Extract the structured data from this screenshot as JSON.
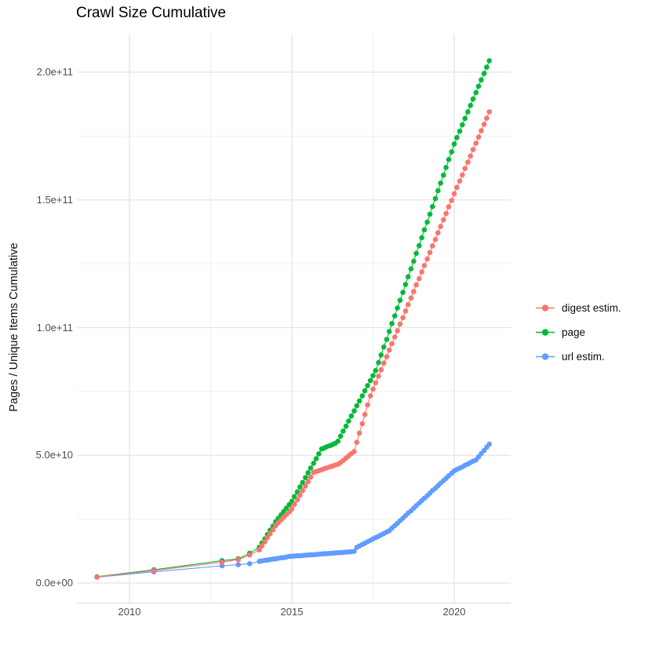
{
  "title": "Crawl Size Cumulative",
  "axes": {
    "y_label": "Pages / Unique Items Cumulative",
    "x_ticks": [
      {
        "label": "2010",
        "year": 2010
      },
      {
        "label": "2015",
        "year": 2015
      },
      {
        "label": "2020",
        "year": 2020
      }
    ],
    "y_ticks": [
      {
        "label": "0.0e+00",
        "value_billions": 0
      },
      {
        "label": "5.0e+10",
        "value_billions": 50
      },
      {
        "label": "1.0e+11",
        "value_billions": 100
      },
      {
        "label": "1.5e+11",
        "value_billions": 150
      },
      {
        "label": "2.0e+11",
        "value_billions": 200
      }
    ],
    "x_minor_gridlines_years": [
      2012.5,
      2017.5
    ],
    "y_minor_gridlines_billions": [
      25,
      75,
      125,
      175
    ],
    "grid_major_color": "#e4e4e4",
    "grid_minor_color": "#f0f0f0",
    "axis_baseline_color": "#dcdcdc",
    "tick_label_color": "#4d4d4d"
  },
  "legend": {
    "entries": [
      {
        "label": "digest estim.",
        "color": "#F8766D"
      },
      {
        "label": "page",
        "color": "#00BA38"
      },
      {
        "label": "url estim.",
        "color": "#619CFF"
      }
    ]
  },
  "chart_data": {
    "type": "line",
    "title": "Crawl Size Cumulative",
    "xlabel": "",
    "ylabel": "Pages / Unique Items Cumulative",
    "values_unit": "billions (1e9) of pages / unique items",
    "x_axis_years_range": [
      2008.4,
      2021.8
    ],
    "y_axis_range_billions": [
      -10,
      215
    ],
    "legend_position": "right",
    "grid": true,
    "series": [
      {
        "name": "digest estim.",
        "color": "#F8766D",
        "points_year_value_billions": [
          [
            2009.0,
            2.4
          ],
          [
            2010.75,
            4.9
          ],
          [
            2012.85,
            8.2
          ],
          [
            2013.35,
            9.2
          ],
          [
            2013.7,
            11.0
          ],
          [
            2014.0,
            13
          ],
          [
            2014.08,
            14.6
          ],
          [
            2014.17,
            16.2
          ],
          [
            2014.25,
            17.8
          ],
          [
            2014.33,
            19.3
          ],
          [
            2014.42,
            20.9
          ],
          [
            2014.5,
            22.5
          ],
          [
            2014.58,
            23.6
          ],
          [
            2014.67,
            24.7
          ],
          [
            2014.75,
            25.8
          ],
          [
            2014.83,
            26.8
          ],
          [
            2014.92,
            27.9
          ],
          [
            2015.0,
            29
          ],
          [
            2015.08,
            30.8
          ],
          [
            2015.17,
            32.6
          ],
          [
            2015.25,
            34.4
          ],
          [
            2015.33,
            36.2
          ],
          [
            2015.42,
            38
          ],
          [
            2015.5,
            39.7
          ],
          [
            2015.58,
            41.5
          ],
          [
            2015.67,
            43.3
          ],
          [
            2015.75,
            43.7
          ],
          [
            2015.83,
            44
          ],
          [
            2015.92,
            44.4
          ],
          [
            2016.0,
            44.8
          ],
          [
            2016.08,
            45.1
          ],
          [
            2016.17,
            45.5
          ],
          [
            2016.25,
            45.8
          ],
          [
            2016.33,
            46.2
          ],
          [
            2016.42,
            46.5
          ],
          [
            2016.5,
            47.2
          ],
          [
            2016.58,
            48
          ],
          [
            2016.67,
            48.9
          ],
          [
            2016.75,
            49.8
          ],
          [
            2016.83,
            50.7
          ],
          [
            2016.92,
            51.5
          ],
          [
            2017.0,
            55.1
          ],
          [
            2017.08,
            58.7
          ],
          [
            2017.17,
            62.4
          ],
          [
            2017.25,
            66
          ],
          [
            2017.33,
            69.7
          ],
          [
            2017.42,
            73.3
          ],
          [
            2017.5,
            75.9
          ],
          [
            2017.58,
            78.4
          ],
          [
            2017.67,
            81
          ],
          [
            2017.75,
            83.5
          ],
          [
            2017.83,
            86.1
          ],
          [
            2017.92,
            88.6
          ],
          [
            2018.0,
            91.2
          ],
          [
            2018.08,
            93.7
          ],
          [
            2018.17,
            96.3
          ],
          [
            2018.25,
            98.8
          ],
          [
            2018.33,
            101.4
          ],
          [
            2018.42,
            103.9
          ],
          [
            2018.5,
            106.5
          ],
          [
            2018.58,
            109
          ],
          [
            2018.67,
            111.6
          ],
          [
            2018.75,
            114.1
          ],
          [
            2018.83,
            116.7
          ],
          [
            2018.92,
            119.2
          ],
          [
            2019.0,
            121.8
          ],
          [
            2019.08,
            124.3
          ],
          [
            2019.17,
            126.9
          ],
          [
            2019.25,
            129.4
          ],
          [
            2019.33,
            132
          ],
          [
            2019.42,
            134.5
          ],
          [
            2019.5,
            137.1
          ],
          [
            2019.58,
            139.6
          ],
          [
            2019.67,
            142.2
          ],
          [
            2019.75,
            144.7
          ],
          [
            2019.83,
            147.3
          ],
          [
            2019.92,
            149.8
          ],
          [
            2020.0,
            152.4
          ],
          [
            2020.08,
            154.9
          ],
          [
            2020.17,
            157.4
          ],
          [
            2020.25,
            159.8
          ],
          [
            2020.33,
            162.3
          ],
          [
            2020.42,
            164.8
          ],
          [
            2020.5,
            167.2
          ],
          [
            2020.58,
            169.7
          ],
          [
            2020.67,
            172.2
          ],
          [
            2020.75,
            174.6
          ],
          [
            2020.83,
            177.1
          ],
          [
            2020.92,
            179.6
          ],
          [
            2021.0,
            182
          ],
          [
            2021.08,
            184.5
          ]
        ]
      },
      {
        "name": "page",
        "color": "#00BA38",
        "points_year_value_billions": [
          [
            2009.0,
            2.5
          ],
          [
            2010.75,
            5.2
          ],
          [
            2012.85,
            8.8
          ],
          [
            2013.35,
            9.5
          ],
          [
            2013.7,
            11.7
          ],
          [
            2014.0,
            14
          ],
          [
            2014.08,
            15.7
          ],
          [
            2014.17,
            17.3
          ],
          [
            2014.25,
            19
          ],
          [
            2014.33,
            20.7
          ],
          [
            2014.42,
            22.3
          ],
          [
            2014.5,
            24
          ],
          [
            2014.58,
            25.3
          ],
          [
            2014.67,
            26.7
          ],
          [
            2014.75,
            28
          ],
          [
            2014.83,
            29.3
          ],
          [
            2014.92,
            30.7
          ],
          [
            2015.0,
            32
          ],
          [
            2015.08,
            33.9
          ],
          [
            2015.17,
            35.7
          ],
          [
            2015.25,
            37.6
          ],
          [
            2015.33,
            39.4
          ],
          [
            2015.42,
            41.3
          ],
          [
            2015.5,
            43.2
          ],
          [
            2015.58,
            45
          ],
          [
            2015.67,
            46.9
          ],
          [
            2015.75,
            48.7
          ],
          [
            2015.83,
            50.6
          ],
          [
            2015.92,
            52.5
          ],
          [
            2016.0,
            52.9
          ],
          [
            2016.08,
            53.4
          ],
          [
            2016.17,
            53.8
          ],
          [
            2016.25,
            54.2
          ],
          [
            2016.33,
            54.7
          ],
          [
            2016.42,
            55.5
          ],
          [
            2016.5,
            57.5
          ],
          [
            2016.58,
            59.5
          ],
          [
            2016.67,
            61.4
          ],
          [
            2016.75,
            63.4
          ],
          [
            2016.83,
            65.4
          ],
          [
            2016.92,
            67.4
          ],
          [
            2017.0,
            69.4
          ],
          [
            2017.08,
            71.3
          ],
          [
            2017.17,
            73.3
          ],
          [
            2017.25,
            75.3
          ],
          [
            2017.33,
            77.3
          ],
          [
            2017.42,
            79.3
          ],
          [
            2017.5,
            81.2
          ],
          [
            2017.58,
            83.2
          ],
          [
            2017.67,
            86.3
          ],
          [
            2017.75,
            89.3
          ],
          [
            2017.83,
            92.4
          ],
          [
            2017.92,
            95.4
          ],
          [
            2018.0,
            98.5
          ],
          [
            2018.08,
            101.6
          ],
          [
            2018.17,
            104.6
          ],
          [
            2018.25,
            107.7
          ],
          [
            2018.33,
            110.7
          ],
          [
            2018.42,
            113.8
          ],
          [
            2018.5,
            116.9
          ],
          [
            2018.58,
            119.9
          ],
          [
            2018.67,
            123
          ],
          [
            2018.75,
            126
          ],
          [
            2018.83,
            129.1
          ],
          [
            2018.92,
            132.1
          ],
          [
            2019.0,
            135.2
          ],
          [
            2019.08,
            138.3
          ],
          [
            2019.17,
            141.3
          ],
          [
            2019.25,
            144.4
          ],
          [
            2019.33,
            147.4
          ],
          [
            2019.42,
            150.5
          ],
          [
            2019.5,
            153.6
          ],
          [
            2019.58,
            156.6
          ],
          [
            2019.67,
            159.7
          ],
          [
            2019.75,
            162.7
          ],
          [
            2019.83,
            165.8
          ],
          [
            2019.92,
            168.8
          ],
          [
            2020.0,
            171.9
          ],
          [
            2020.08,
            174.4
          ],
          [
            2020.17,
            176.9
          ],
          [
            2020.25,
            179.4
          ],
          [
            2020.33,
            181.9
          ],
          [
            2020.42,
            184.5
          ],
          [
            2020.5,
            187
          ],
          [
            2020.58,
            189.5
          ],
          [
            2020.67,
            192
          ],
          [
            2020.75,
            194.5
          ],
          [
            2020.83,
            197
          ],
          [
            2020.92,
            199.5
          ],
          [
            2021.0,
            202
          ],
          [
            2021.08,
            204.5
          ]
        ]
      },
      {
        "name": "url estim.",
        "color": "#619CFF",
        "points_year_value_billions": [
          [
            2009.0,
            2.3
          ],
          [
            2010.75,
            4.4
          ],
          [
            2012.85,
            6.8
          ],
          [
            2013.35,
            7.2
          ],
          [
            2013.7,
            7.6
          ],
          [
            2014.0,
            8.5
          ],
          [
            2014.08,
            8.7
          ],
          [
            2014.17,
            8.9
          ],
          [
            2014.25,
            9
          ],
          [
            2014.33,
            9.2
          ],
          [
            2014.42,
            9.4
          ],
          [
            2014.5,
            9.5
          ],
          [
            2014.58,
            9.7
          ],
          [
            2014.67,
            9.9
          ],
          [
            2014.75,
            10
          ],
          [
            2014.83,
            10.2
          ],
          [
            2014.92,
            10.4
          ],
          [
            2015.0,
            10.5
          ],
          [
            2015.08,
            10.6
          ],
          [
            2015.17,
            10.7
          ],
          [
            2015.25,
            10.7
          ],
          [
            2015.33,
            10.8
          ],
          [
            2015.42,
            10.9
          ],
          [
            2015.5,
            11
          ],
          [
            2015.58,
            11.1
          ],
          [
            2015.67,
            11.1
          ],
          [
            2015.75,
            11.2
          ],
          [
            2015.83,
            11.3
          ],
          [
            2015.92,
            11.4
          ],
          [
            2016.0,
            11.5
          ],
          [
            2016.08,
            11.5
          ],
          [
            2016.17,
            11.6
          ],
          [
            2016.25,
            11.7
          ],
          [
            2016.33,
            11.8
          ],
          [
            2016.42,
            11.9
          ],
          [
            2016.5,
            11.9
          ],
          [
            2016.58,
            12
          ],
          [
            2016.67,
            12.1
          ],
          [
            2016.75,
            12.2
          ],
          [
            2016.83,
            12.3
          ],
          [
            2016.92,
            12.4
          ],
          [
            2017.0,
            14
          ],
          [
            2017.08,
            14.5
          ],
          [
            2017.17,
            15.1
          ],
          [
            2017.25,
            15.6
          ],
          [
            2017.33,
            16.2
          ],
          [
            2017.42,
            16.7
          ],
          [
            2017.5,
            17.3
          ],
          [
            2017.58,
            17.8
          ],
          [
            2017.67,
            18.3
          ],
          [
            2017.75,
            18.9
          ],
          [
            2017.83,
            19.4
          ],
          [
            2017.92,
            20
          ],
          [
            2018.0,
            20.5
          ],
          [
            2018.08,
            21.5
          ],
          [
            2018.17,
            22.5
          ],
          [
            2018.25,
            23.4
          ],
          [
            2018.33,
            24.4
          ],
          [
            2018.42,
            25.4
          ],
          [
            2018.5,
            26.4
          ],
          [
            2018.58,
            27.4
          ],
          [
            2018.67,
            28.3
          ],
          [
            2018.75,
            29.3
          ],
          [
            2018.83,
            30.3
          ],
          [
            2018.92,
            31.3
          ],
          [
            2019.0,
            32.3
          ],
          [
            2019.08,
            33.2
          ],
          [
            2019.17,
            34.2
          ],
          [
            2019.25,
            35.2
          ],
          [
            2019.33,
            36.2
          ],
          [
            2019.42,
            37.1
          ],
          [
            2019.5,
            38.1
          ],
          [
            2019.58,
            39.1
          ],
          [
            2019.67,
            40.1
          ],
          [
            2019.75,
            41
          ],
          [
            2019.83,
            42
          ],
          [
            2019.92,
            43
          ],
          [
            2020.0,
            43.9
          ],
          [
            2020.08,
            44.5
          ],
          [
            2020.17,
            45
          ],
          [
            2020.25,
            45.5
          ],
          [
            2020.33,
            46.1
          ],
          [
            2020.42,
            46.6
          ],
          [
            2020.5,
            47.2
          ],
          [
            2020.58,
            47.7
          ],
          [
            2020.67,
            48.2
          ],
          [
            2020.75,
            49.4
          ],
          [
            2020.83,
            50.7
          ],
          [
            2020.92,
            51.9
          ],
          [
            2021.0,
            53.2
          ],
          [
            2021.08,
            54.4
          ]
        ]
      }
    ]
  }
}
